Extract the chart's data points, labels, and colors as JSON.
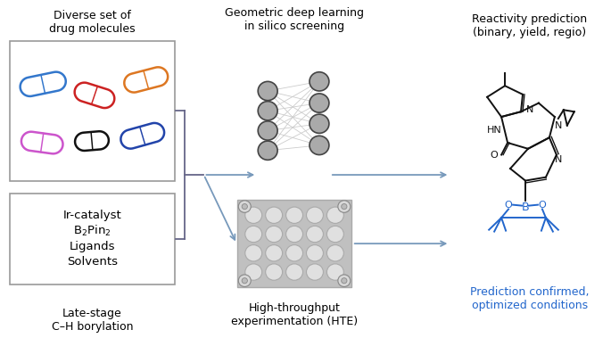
{
  "bg_color": "#ffffff",
  "panel_titles": {
    "top_left": "Diverse set of\ndrug molecules",
    "center": "Geometric deep learning\nin silico screening",
    "top_right": "Reactivity prediction\n(binary, yield, regio)",
    "bottom_right_blue": "Prediction confirmed,\noptimized conditions"
  },
  "left_box_labels": [
    "Ir-catalyst",
    "B₂Pin₂",
    "Ligands",
    "Solvents"
  ],
  "left_box_label_bottom": "Late-stage\nC–H borylation",
  "hte_label": "High-throughput\nexperimentation (HTE)",
  "pill_colors": [
    "#3377cc",
    "#cc2222",
    "#dd7722",
    "#cc55cc",
    "#111111",
    "#2244aa"
  ],
  "arrow_color": "#7799bb",
  "node_color": "#aaaaaa",
  "node_edge": "#444444",
  "line_color": "#666688"
}
